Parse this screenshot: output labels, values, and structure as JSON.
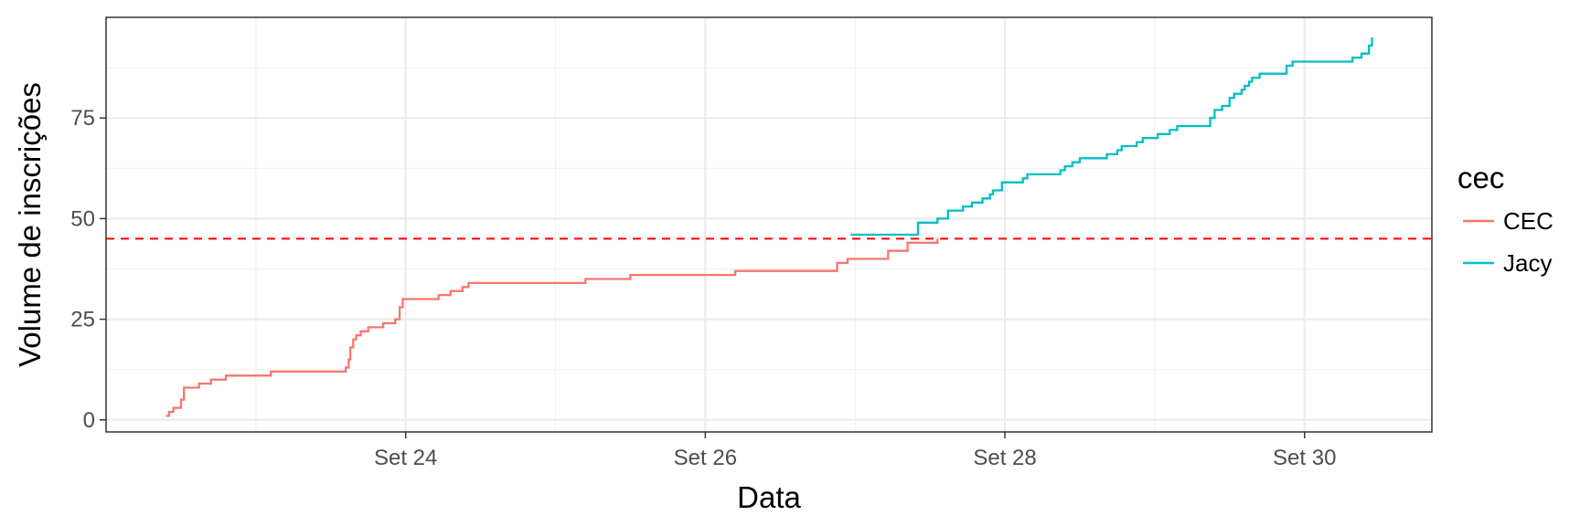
{
  "chart_data": {
    "type": "line",
    "xlabel": "Data",
    "ylabel": "Volume de inscrições",
    "x_unit": "day of September",
    "xlim": [
      22.0,
      30.85
    ],
    "ylim": [
      -3,
      100
    ],
    "x_ticks": [
      {
        "value": 24,
        "label": "Set 24"
      },
      {
        "value": 26,
        "label": "Set 26"
      },
      {
        "value": 28,
        "label": "Set 28"
      },
      {
        "value": 30,
        "label": "Set 30"
      }
    ],
    "x_minor_ticks": [
      23,
      25,
      27,
      29
    ],
    "y_ticks": [
      {
        "value": 0,
        "label": "0"
      },
      {
        "value": 25,
        "label": "25"
      },
      {
        "value": 50,
        "label": "50"
      },
      {
        "value": 75,
        "label": "75"
      }
    ],
    "y_minor_ticks": [
      12.5,
      37.5,
      62.5,
      87.5
    ],
    "grid": true,
    "reference_line": {
      "y": 45,
      "color": "#ff0000",
      "style": "dashed"
    },
    "legend": {
      "title": "cec",
      "position": "right"
    },
    "series": [
      {
        "name": "CEC",
        "color": "#f8766d",
        "step": true,
        "points": [
          [
            22.4,
            1
          ],
          [
            22.42,
            2
          ],
          [
            22.45,
            3
          ],
          [
            22.5,
            5
          ],
          [
            22.52,
            8
          ],
          [
            22.58,
            8
          ],
          [
            22.62,
            9
          ],
          [
            22.7,
            10
          ],
          [
            22.8,
            11
          ],
          [
            23.0,
            11
          ],
          [
            23.1,
            12
          ],
          [
            23.5,
            12
          ],
          [
            23.6,
            13
          ],
          [
            23.62,
            15
          ],
          [
            23.63,
            18
          ],
          [
            23.65,
            20
          ],
          [
            23.67,
            21
          ],
          [
            23.7,
            22
          ],
          [
            23.75,
            23
          ],
          [
            23.85,
            24
          ],
          [
            23.93,
            25
          ],
          [
            23.96,
            28
          ],
          [
            23.98,
            30
          ],
          [
            24.05,
            30
          ],
          [
            24.22,
            31
          ],
          [
            24.3,
            32
          ],
          [
            24.38,
            33
          ],
          [
            24.42,
            34
          ],
          [
            24.55,
            34
          ],
          [
            25.2,
            35
          ],
          [
            25.5,
            36
          ],
          [
            26.2,
            37
          ],
          [
            26.8,
            37
          ],
          [
            26.88,
            39
          ],
          [
            26.95,
            40
          ],
          [
            27.1,
            40
          ],
          [
            27.22,
            42
          ],
          [
            27.35,
            44
          ],
          [
            27.5,
            44
          ],
          [
            27.55,
            45
          ]
        ]
      },
      {
        "name": "Jacy",
        "color": "#00bfc4",
        "step": true,
        "points": [
          [
            26.97,
            46
          ],
          [
            27.38,
            46
          ],
          [
            27.42,
            49
          ],
          [
            27.55,
            50
          ],
          [
            27.62,
            52
          ],
          [
            27.72,
            53
          ],
          [
            27.78,
            54
          ],
          [
            27.85,
            55
          ],
          [
            27.9,
            56
          ],
          [
            27.92,
            57
          ],
          [
            27.98,
            59
          ],
          [
            28.05,
            59
          ],
          [
            28.12,
            60
          ],
          [
            28.15,
            61
          ],
          [
            28.35,
            61
          ],
          [
            28.37,
            62
          ],
          [
            28.4,
            63
          ],
          [
            28.45,
            64
          ],
          [
            28.5,
            65
          ],
          [
            28.6,
            65
          ],
          [
            28.68,
            66
          ],
          [
            28.75,
            67
          ],
          [
            28.78,
            68
          ],
          [
            28.88,
            69
          ],
          [
            28.92,
            70
          ],
          [
            29.0,
            70
          ],
          [
            29.02,
            71
          ],
          [
            29.1,
            72
          ],
          [
            29.15,
            73
          ],
          [
            29.35,
            73
          ],
          [
            29.37,
            75
          ],
          [
            29.4,
            77
          ],
          [
            29.45,
            78
          ],
          [
            29.5,
            80
          ],
          [
            29.53,
            81
          ],
          [
            29.58,
            82
          ],
          [
            29.6,
            83
          ],
          [
            29.63,
            84
          ],
          [
            29.65,
            85
          ],
          [
            29.7,
            86
          ],
          [
            29.8,
            86
          ],
          [
            29.88,
            88
          ],
          [
            29.92,
            89
          ],
          [
            30.3,
            89
          ],
          [
            30.32,
            90
          ],
          [
            30.38,
            91
          ],
          [
            30.43,
            93
          ],
          [
            30.45,
            95
          ]
        ]
      }
    ]
  }
}
